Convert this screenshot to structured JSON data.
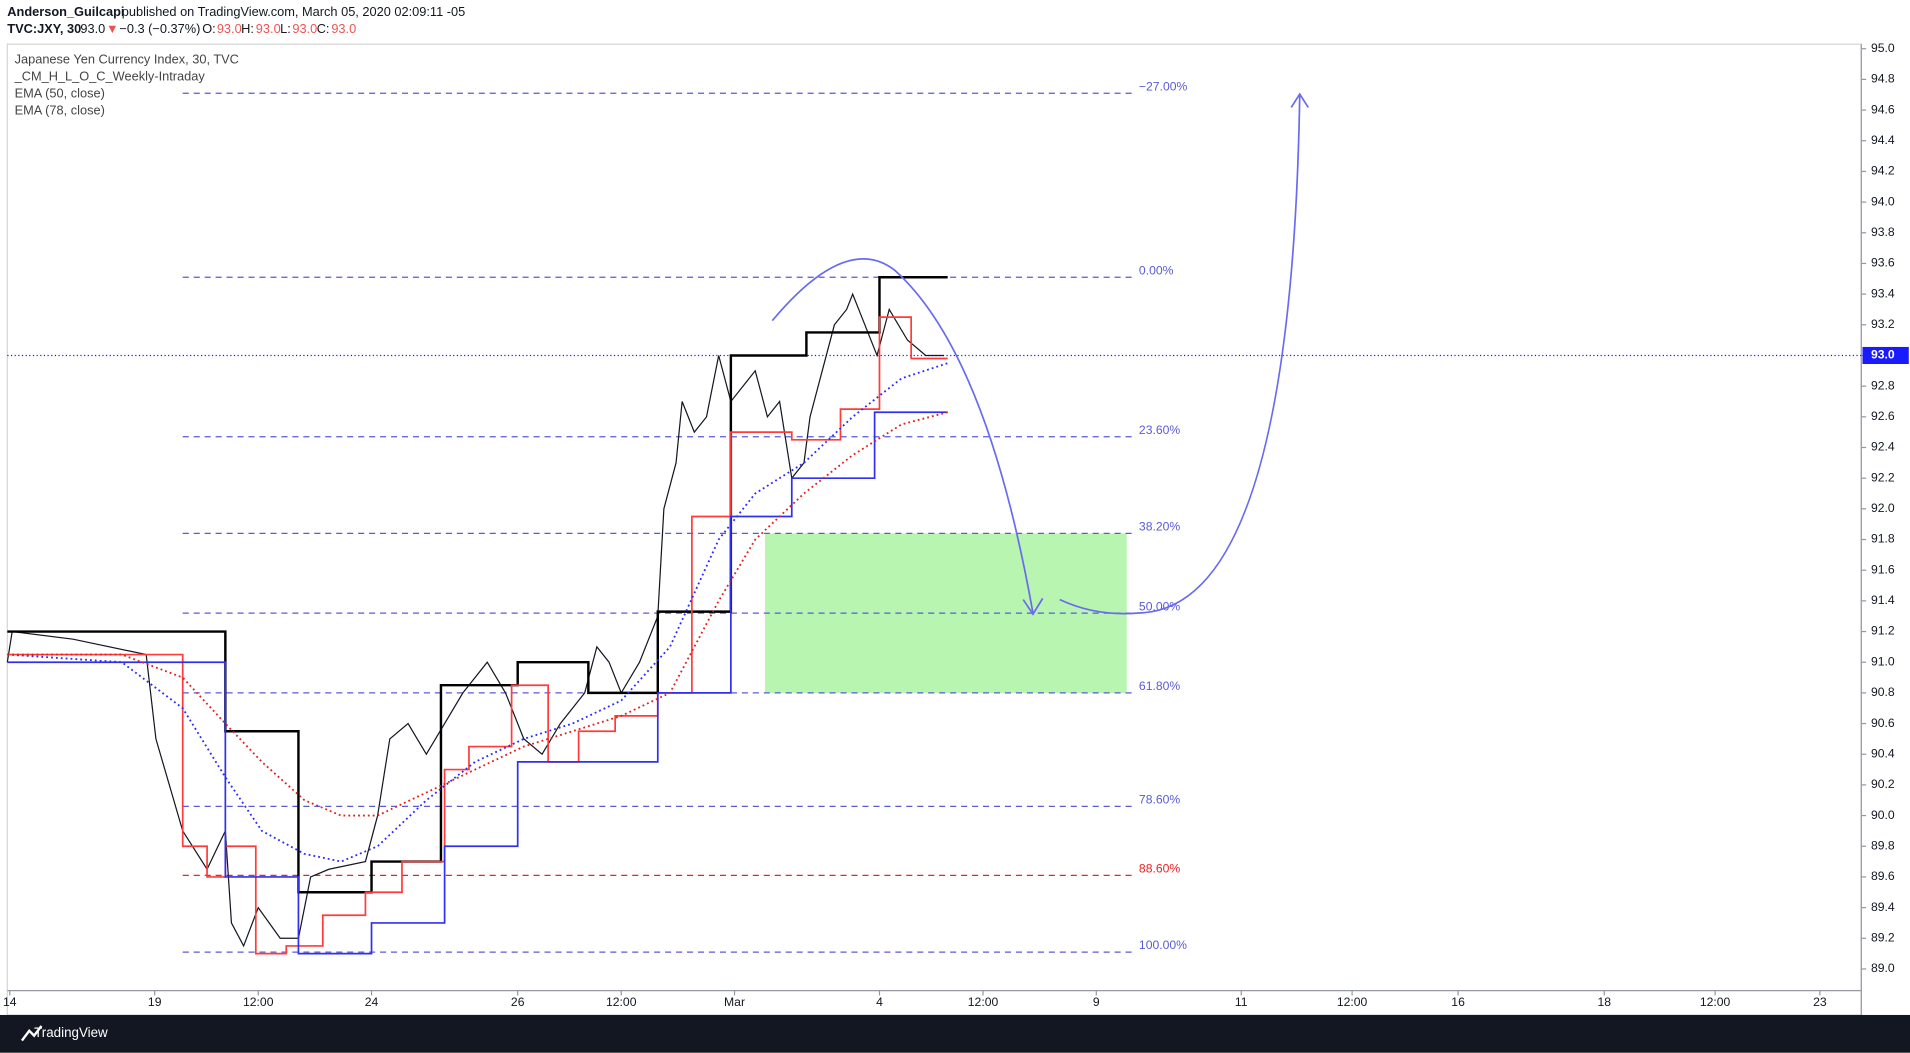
{
  "header": {
    "author": "Anderson_Guilcapi",
    "published": "published on TradingView.com, March 05, 2020 02:09:11 -05",
    "symbol": "TVC:JXY, 30",
    "last": "93.0",
    "arrow": "▼",
    "change": "−0.3 (−0.37%)",
    "o_label": "O:",
    "o": "93.0",
    "h_label": "H:",
    "h": "93.0",
    "l_label": "L:",
    "l": "93.0",
    "c_label": "C:",
    "c": "93.0",
    "footer": "TradingView"
  },
  "chart_data": {
    "type": "line",
    "title": "Japanese Yen Currency Index, 30, TVC",
    "indicator": "_CM_H_L_O_C_Weekly-Intraday",
    "series": [
      {
        "name": "Japanese Yen Currency Index, 30, TVC",
        "color": "#131722",
        "style": "price",
        "x": [
          6,
          10,
          60,
          120,
          128,
          150,
          170,
          185,
          190,
          200,
          212,
          230,
          245,
          255,
          270,
          300,
          310,
          320,
          335,
          350,
          365,
          380,
          400,
          415,
          430,
          445,
          460,
          480,
          490,
          500,
          510,
          525,
          540,
          545,
          555,
          560,
          570,
          580,
          590,
          600,
          610,
          620,
          630,
          640,
          650,
          660,
          665,
          675,
          685,
          695,
          700,
          710,
          720,
          730,
          745,
          760,
          775
        ],
        "values": [
          91.0,
          91.2,
          91.15,
          91.05,
          90.5,
          89.9,
          89.65,
          89.9,
          89.3,
          89.15,
          89.4,
          89.2,
          89.2,
          89.6,
          89.65,
          89.7,
          90.0,
          90.5,
          90.6,
          90.4,
          90.6,
          90.8,
          91.0,
          90.8,
          90.5,
          90.4,
          90.6,
          90.8,
          91.1,
          91.0,
          90.8,
          91.0,
          91.3,
          92.0,
          92.3,
          92.7,
          92.5,
          92.6,
          93.0,
          92.7,
          92.8,
          92.9,
          92.6,
          92.7,
          92.2,
          92.3,
          92.6,
          92.9,
          93.2,
          93.3,
          93.4,
          93.2,
          93.0,
          93.3,
          93.1,
          93.0,
          93.0
        ]
      },
      {
        "color": "#000000",
        "style": "step",
        "x": [
          6,
          185,
          245,
          305,
          362,
          425,
          483,
          540,
          600,
          662,
          722,
          778
        ],
        "values": [
          91.2,
          90.55,
          89.5,
          89.7,
          90.85,
          91.0,
          90.8,
          91.33,
          93.0,
          93.15,
          93.51,
          93.51
        ]
      },
      {
        "color": "#ff3b3b",
        "style": "step",
        "x": [
          6,
          150,
          170,
          185,
          210,
          235,
          265,
          300,
          330,
          365,
          385,
          420,
          450,
          475,
          505,
          540,
          568,
          600,
          650,
          690,
          722,
          748,
          778
        ],
        "values": [
          91.05,
          89.8,
          89.6,
          89.8,
          89.1,
          89.15,
          89.35,
          89.5,
          89.7,
          90.3,
          90.45,
          90.85,
          90.35,
          90.55,
          90.65,
          90.8,
          91.95,
          92.5,
          92.45,
          92.65,
          93.25,
          92.98,
          92.98
        ]
      },
      {
        "color": "#3030ee",
        "style": "step",
        "x": [
          6,
          185,
          245,
          305,
          365,
          425,
          540,
          600,
          650,
          718,
          778
        ],
        "values": [
          91.0,
          89.6,
          89.1,
          89.3,
          89.8,
          90.35,
          90.8,
          91.95,
          92.2,
          92.63,
          92.63
        ]
      },
      {
        "name": "EMA (50, close)",
        "color": "#2a2aff",
        "style": "dotted",
        "x": [
          6,
          100,
          150,
          185,
          215,
          250,
          280,
          310,
          350,
          390,
          430,
          470,
          510,
          550,
          590,
          620,
          660,
          700,
          740,
          778
        ],
        "values": [
          91.05,
          91.0,
          90.7,
          90.25,
          89.9,
          89.75,
          89.7,
          89.8,
          90.1,
          90.35,
          90.5,
          90.6,
          90.75,
          91.1,
          91.8,
          92.1,
          92.3,
          92.6,
          92.85,
          92.95
        ]
      },
      {
        "name": "EMA (78, close)",
        "color": "#e0201a",
        "style": "dotted",
        "x": [
          6,
          100,
          150,
          185,
          215,
          250,
          280,
          310,
          350,
          390,
          430,
          470,
          510,
          550,
          590,
          620,
          660,
          700,
          740,
          778
        ],
        "values": [
          91.05,
          91.05,
          90.9,
          90.6,
          90.35,
          90.1,
          90.0,
          90.0,
          90.15,
          90.3,
          90.45,
          90.55,
          90.65,
          90.8,
          91.4,
          91.8,
          92.1,
          92.35,
          92.55,
          92.63
        ]
      }
    ],
    "levels": [
      {
        "value": 94.71,
        "label": "−27.00%",
        "color": "#5b5bd6"
      },
      {
        "value": 93.51,
        "label": "0.00%",
        "color": "#5b5bd6"
      },
      {
        "value": 92.47,
        "label": "23.60%",
        "color": "#5b5bd6"
      },
      {
        "value": 91.84,
        "label": "38.20%",
        "color": "#5b5bd6"
      },
      {
        "value": 91.32,
        "label": "50.00%",
        "color": "#5b5bd6"
      },
      {
        "value": 90.8,
        "label": "61.80%",
        "color": "#5b5bd6"
      },
      {
        "value": 90.06,
        "label": "78.60%",
        "color": "#5b5bd6"
      },
      {
        "value": 89.61,
        "label": "88.60%",
        "color": "#ee2222"
      },
      {
        "value": 89.11,
        "label": "100.00%",
        "color": "#5b5bd6"
      }
    ],
    "zone": {
      "color": "#b8f5b0",
      "range": [
        90.8,
        91.84
      ]
    },
    "last_price": {
      "value": 93.0,
      "label": "93.0",
      "color": "#1a1aff"
    },
    "xlim": [
      6,
      1528
    ],
    "ylim": [
      88.7,
      95.03
    ],
    "xticks": [
      {
        "value": 8,
        "label": "14"
      },
      {
        "value": 127,
        "label": "19"
      },
      {
        "value": 212,
        "label": "12:00"
      },
      {
        "value": 305,
        "label": "24"
      },
      {
        "value": 425,
        "label": "26"
      },
      {
        "value": 510,
        "label": "12:00"
      },
      {
        "value": 603,
        "label": "Mar"
      },
      {
        "value": 722,
        "label": "4"
      },
      {
        "value": 807,
        "label": "12:00"
      },
      {
        "value": 900,
        "label": "9"
      },
      {
        "value": 1019,
        "label": "11"
      },
      {
        "value": 1110,
        "label": "12:00"
      },
      {
        "value": 1197,
        "label": "16"
      },
      {
        "value": 1317,
        "label": "18"
      },
      {
        "value": 1408,
        "label": "12:00"
      },
      {
        "value": 1494,
        "label": "23"
      }
    ],
    "yticks": [
      {
        "value": 89,
        "label": "89.0"
      },
      {
        "value": 89.2,
        "label": "89.2"
      },
      {
        "value": 89.4,
        "label": "89.4"
      },
      {
        "value": 89.6,
        "label": "89.6"
      },
      {
        "value": 89.8,
        "label": "89.8"
      },
      {
        "value": 90,
        "label": "90.0"
      },
      {
        "value": 90.2,
        "label": "90.2"
      },
      {
        "value": 90.4,
        "label": "90.4"
      },
      {
        "value": 90.6,
        "label": "90.6"
      },
      {
        "value": 90.8,
        "label": "90.8"
      },
      {
        "value": 91,
        "label": "91.0"
      },
      {
        "value": 91.2,
        "label": "91.2"
      },
      {
        "value": 91.4,
        "label": "91.4"
      },
      {
        "value": 91.6,
        "label": "91.6"
      },
      {
        "value": 91.8,
        "label": "91.8"
      },
      {
        "value": 92,
        "label": "92.0"
      },
      {
        "value": 92.2,
        "label": "92.2"
      },
      {
        "value": 92.4,
        "label": "92.4"
      },
      {
        "value": 92.6,
        "label": "92.6"
      },
      {
        "value": 92.8,
        "label": "92.8"
      },
      {
        "value": 93,
        "label": "93.0"
      },
      {
        "value": 93.2,
        "label": "93.2"
      },
      {
        "value": 93.4,
        "label": "93.4"
      },
      {
        "value": 93.6,
        "label": "93.6"
      },
      {
        "value": 93.8,
        "label": "93.8"
      },
      {
        "value": 94,
        "label": "94.0"
      },
      {
        "value": 94.2,
        "label": "94.2"
      },
      {
        "value": 94.4,
        "label": "94.4"
      },
      {
        "value": 94.6,
        "label": "94.6"
      },
      {
        "value": 94.8,
        "label": "94.8"
      },
      {
        "value": 95,
        "label": "95.0"
      }
    ]
  }
}
